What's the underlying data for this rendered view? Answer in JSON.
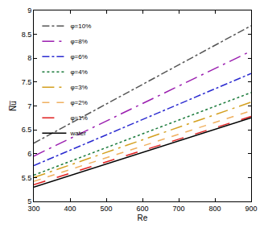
{
  "chart_data": {
    "type": "line",
    "x_label": "Re",
    "y_label": "N̅u̅",
    "x": [
      300,
      600,
      900
    ],
    "series": [
      {
        "name": "φ=10%",
        "color": "#555555",
        "line_style": "dashdot",
        "values": [
          6.22,
          7.45,
          8.68
        ]
      },
      {
        "name": "φ=8%",
        "color": "#9b1fb0",
        "line_style": "longdashdot",
        "values": [
          5.95,
          7.05,
          8.15
        ]
      },
      {
        "name": "φ=6%",
        "color": "#2a2ad0",
        "line_style": "dashdot",
        "values": [
          5.75,
          6.72,
          7.68
        ]
      },
      {
        "name": "φ=4%",
        "color": "#1a7a3a",
        "line_style": "dot",
        "values": [
          5.55,
          6.42,
          7.28
        ]
      },
      {
        "name": "φ=3%",
        "color": "#d4a020",
        "line_style": "longdashdot",
        "values": [
          5.5,
          6.29,
          7.08
        ]
      },
      {
        "name": "φ=2%",
        "color": "#f0b060",
        "line_style": "dash",
        "values": [
          5.42,
          6.16,
          6.9
        ]
      },
      {
        "name": "φ=1%",
        "color": "#e02020",
        "line_style": "longdash",
        "values": [
          5.35,
          6.07,
          6.78
        ]
      },
      {
        "name": "water",
        "color": "#000000",
        "line_style": "solid",
        "values": [
          5.3,
          6.03,
          6.75
        ]
      }
    ],
    "xlim": [
      300,
      900
    ],
    "xticks": [
      300,
      400,
      500,
      600,
      700,
      800,
      900
    ],
    "ylim": [
      5,
      9
    ],
    "yticks": [
      5,
      5.5,
      6,
      6.5,
      7,
      7.5,
      8,
      8.5,
      9
    ],
    "grid": false,
    "legend": "top left"
  }
}
